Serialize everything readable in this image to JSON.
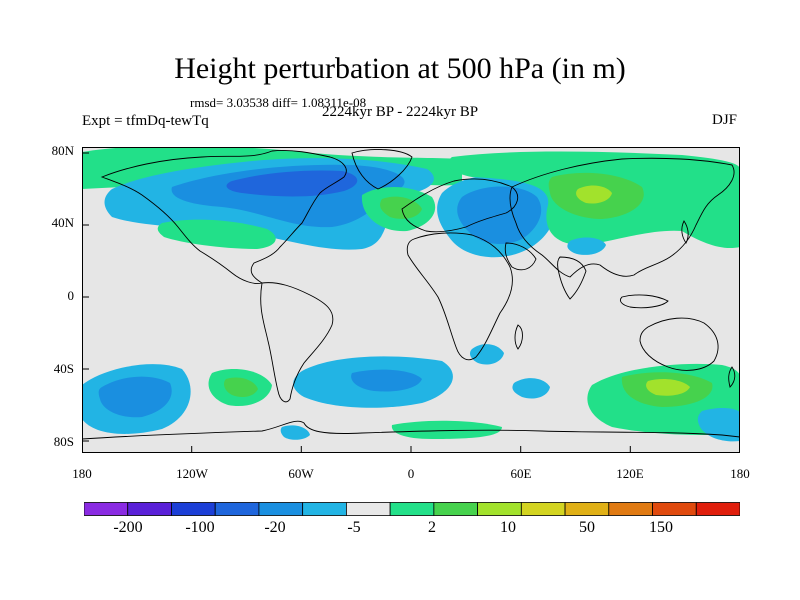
{
  "title": "Height perturbation at 500 hPa (in m)",
  "stats": "rmsd= 3.03538 diff= 1.08311e-08",
  "left_label": "Expt = tfmDq-tewTq",
  "center_label": "2224kyr BP - 2224kyr BP",
  "right_label": "DJF",
  "lat_labels": [
    "80N",
    "40N",
    "0",
    "40S",
    "80S"
  ],
  "lon_labels": [
    "180",
    "120W",
    "60W",
    "0",
    "60E",
    "120E",
    "180"
  ],
  "colorbar": {
    "labels": [
      "-200",
      "-100",
      "-20",
      "-5",
      "2",
      "10",
      "50",
      "150"
    ],
    "colors": [
      "#8a2be2",
      "#5a20d8",
      "#1c3fd6",
      "#1f66dc",
      "#1a8fe0",
      "#22b4e4",
      "#e8e8e8",
      "#23e089",
      "#46d24d",
      "#a2e22c",
      "#d3d421",
      "#e0b016",
      "#e07a12",
      "#e04a0e",
      "#e01e0c"
    ]
  },
  "colors": {
    "background": "#e6e6e6",
    "coast": "#000000"
  }
}
